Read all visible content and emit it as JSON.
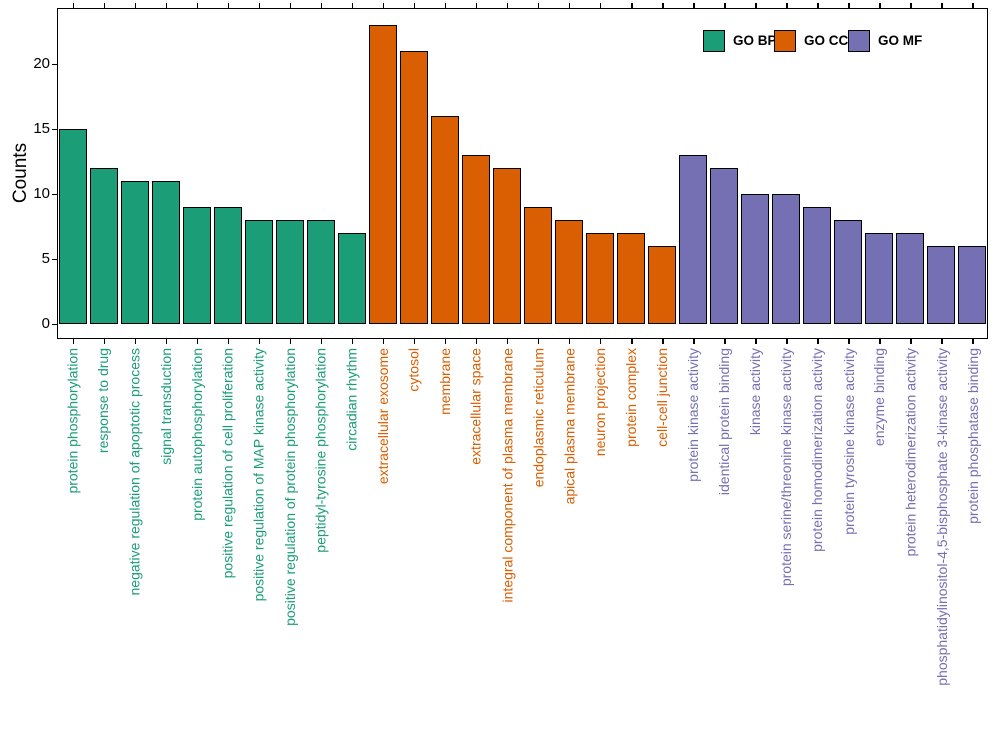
{
  "chart_data": {
    "type": "bar",
    "title": "",
    "xlabel": "",
    "ylabel": "Counts",
    "ylim": [
      0,
      24.2
    ],
    "yticks": [
      0,
      5,
      10,
      15,
      20
    ],
    "grid": false,
    "legend_position": "top-right inside panel",
    "bar_outline_color": "#000000",
    "groups": [
      {
        "name": "GO BP",
        "color": "#1B9E77",
        "categories": [
          "protein phosphorylation",
          "response to drug",
          "negative regulation of apoptotic process",
          "signal transduction",
          "protein autophosphorylation",
          "positive regulation of cell proliferation",
          "positive regulation of MAP kinase activity",
          "positive regulation of protein phosphorylation",
          "peptidyl-tyrosine phosphorylation",
          "circadian rhythm"
        ],
        "values": [
          15,
          12,
          11,
          11,
          9,
          9,
          8,
          8,
          8,
          7
        ]
      },
      {
        "name": "GO CC",
        "color": "#D95F02",
        "categories": [
          "extracellular exosome",
          "cytosol",
          "membrane",
          "extracellular space",
          "integral component of plasma membrane",
          "endoplasmic reticulum",
          "apical plasma membrane",
          "neuron projection",
          "protein complex",
          "cell-cell junction"
        ],
        "values": [
          23,
          21,
          16,
          13,
          12,
          9,
          8,
          7,
          7,
          6
        ]
      },
      {
        "name": "GO MF",
        "color": "#7570B3",
        "categories": [
          "protein kinase activity",
          "identical protein binding",
          "kinase activity",
          "protein serine/threonine kinase activity",
          "protein homodimerization activity",
          "protein tyrosine kinase activity",
          "enzyme binding",
          "protein heterodimerization activity",
          "phosphatidylinositol-4,5-bisphosphate 3-kinase activity",
          "protein phosphatase binding"
        ],
        "values": [
          13,
          12,
          10,
          10,
          9,
          8,
          7,
          7,
          6,
          6
        ]
      }
    ]
  }
}
